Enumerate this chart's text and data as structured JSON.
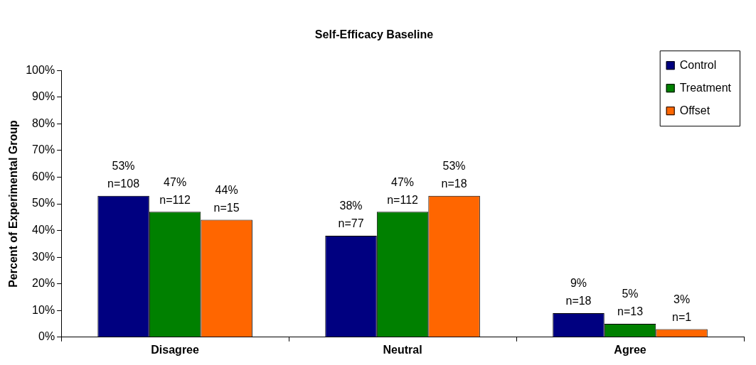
{
  "chart_data": {
    "type": "bar",
    "title": "Self-Efficacy Baseline",
    "ylabel": "Percent of Experimental Group",
    "categories": [
      "Disagree",
      "Neutral",
      "Agree"
    ],
    "series": [
      {
        "name": "Control",
        "color": "#000080",
        "values": [
          53,
          38,
          9
        ],
        "value_labels": [
          "53%\nn=108",
          "38%\nn=77",
          "9%\nn=18"
        ]
      },
      {
        "name": "Treatment",
        "color": "#008000",
        "values": [
          47,
          47,
          5
        ],
        "value_labels": [
          "47%\nn=112",
          "47%\nn=112",
          "5%\nn=13"
        ]
      },
      {
        "name": "Offset",
        "color": "#ff6600",
        "values": [
          44,
          53,
          3
        ],
        "value_labels": [
          "44%\nn=15",
          "53%\nn=18",
          "3%\nn=1"
        ]
      }
    ],
    "ylim": [
      0,
      100
    ],
    "yticks": [
      {
        "value": 0,
        "label": "0%"
      },
      {
        "value": 10,
        "label": "10%"
      },
      {
        "value": 20,
        "label": "20%"
      },
      {
        "value": 30,
        "label": "30%"
      },
      {
        "value": 40,
        "label": "40%"
      },
      {
        "value": 50,
        "label": "50%"
      },
      {
        "value": 60,
        "label": "60%"
      },
      {
        "value": 70,
        "label": "70%"
      },
      {
        "value": 80,
        "label": "80%"
      },
      {
        "value": 90,
        "label": "90%"
      },
      {
        "value": 100,
        "label": "100%"
      }
    ],
    "grid": false,
    "legend": "top right"
  }
}
